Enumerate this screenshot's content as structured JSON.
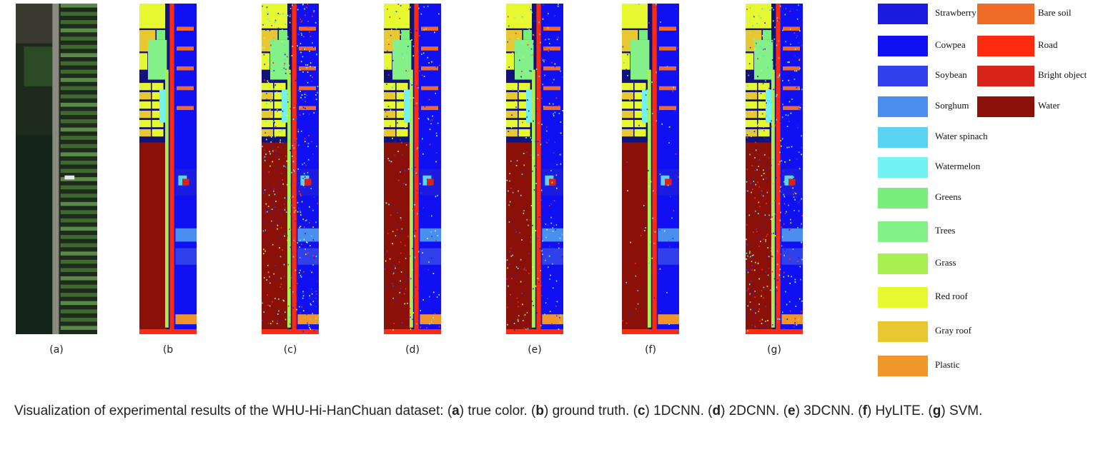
{
  "panels": [
    {
      "label": "(a)"
    },
    {
      "label": "(b"
    },
    {
      "label": "(c)"
    },
    {
      "label": "(d)"
    },
    {
      "label": "(e)"
    },
    {
      "label": "(f)"
    },
    {
      "label": "(g)"
    }
  ],
  "legend": {
    "items": [
      {
        "name": "Strawberry",
        "color": "#1c1ce0"
      },
      {
        "name": "Cowpea",
        "color": "#1010f2"
      },
      {
        "name": "Soybean",
        "color": "#3040ea"
      },
      {
        "name": "Sorghum",
        "color": "#4a8ef0"
      },
      {
        "name": "Water spinach",
        "color": "#5ad2f2"
      },
      {
        "name": "Watermelon",
        "color": "#72f2f2"
      },
      {
        "name": "Greens",
        "color": "#78ee7c"
      },
      {
        "name": "Trees",
        "color": "#84f088"
      },
      {
        "name": "Grass",
        "color": "#a8f050"
      },
      {
        "name": "Red roof",
        "color": "#e6f830"
      },
      {
        "name": "Gray roof",
        "color": "#e8c830"
      },
      {
        "name": "Plastic",
        "color": "#f0962a"
      },
      {
        "name": "Bare soil",
        "color": "#f06a28"
      },
      {
        "name": "Road",
        "color": "#ff2a10"
      },
      {
        "name": "Bright object",
        "color": "#d82418"
      },
      {
        "name": "Water",
        "color": "#8a1008"
      }
    ]
  },
  "caption": {
    "segments": [
      {
        "text": "Visualization of experimental results of the WHU-Hi-HanChuan dataset: ("
      },
      {
        "text": "a",
        "bold": true
      },
      {
        "text": ") true color. ("
      },
      {
        "text": "b",
        "bold": true
      },
      {
        "text": ") ground truth. ("
      },
      {
        "text": "c",
        "bold": true
      },
      {
        "text": ") 1DCNN. ("
      },
      {
        "text": "d",
        "bold": true
      },
      {
        "text": ") 2DCNN. ("
      },
      {
        "text": "e",
        "bold": true
      },
      {
        "text": ") 3DCNN. ("
      },
      {
        "text": "f",
        "bold": true
      },
      {
        "text": ") HyLITE. ("
      },
      {
        "text": "g",
        "bold": true
      },
      {
        "text": ") SVM."
      }
    ]
  }
}
